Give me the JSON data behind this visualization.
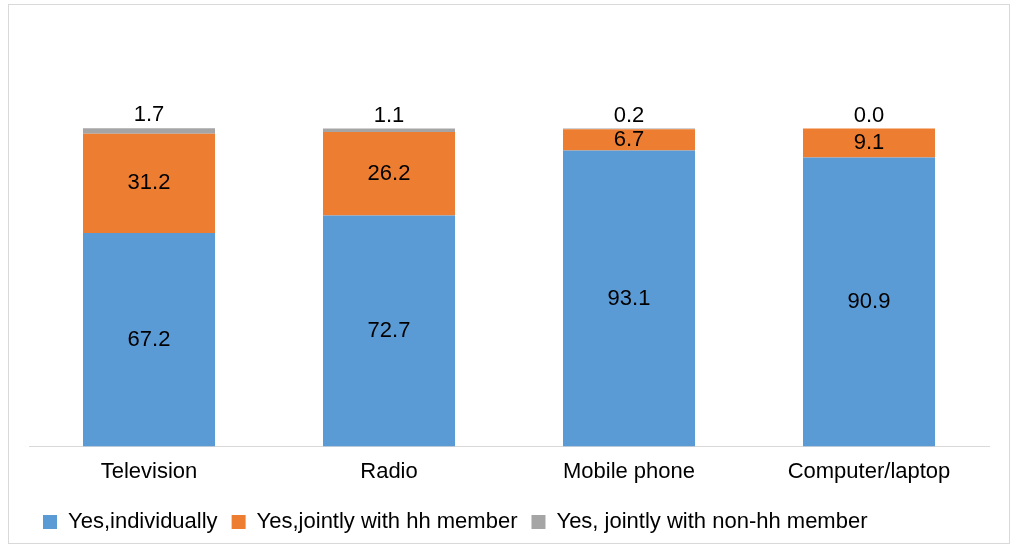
{
  "chart_data": {
    "type": "bar",
    "stacked": true,
    "legend": "bottom",
    "grid": false,
    "categories": [
      "Television",
      "Radio",
      "Mobile phone",
      "Computer/laptop"
    ],
    "series": [
      {
        "name": "Yes,individually",
        "color": "#5b9bd5",
        "values": [
          67.2,
          72.7,
          93.1,
          90.9
        ],
        "value_labels": [
          "67.2",
          "72.7",
          "93.1",
          "90.9"
        ]
      },
      {
        "name": "Yes,jointly with hh member",
        "color": "#ed7d31",
        "values": [
          31.2,
          26.2,
          6.7,
          9.1
        ],
        "value_labels": [
          "31.2",
          "26.2",
          "6.7",
          "9.1"
        ]
      },
      {
        "name": "Yes, jointly with non-hh member",
        "color": "#a5a5a5",
        "values": [
          1.7,
          1.1,
          0.2,
          0.0
        ],
        "value_labels": [
          "1.7",
          "1.1",
          "0.2",
          "0.0"
        ]
      }
    ]
  }
}
